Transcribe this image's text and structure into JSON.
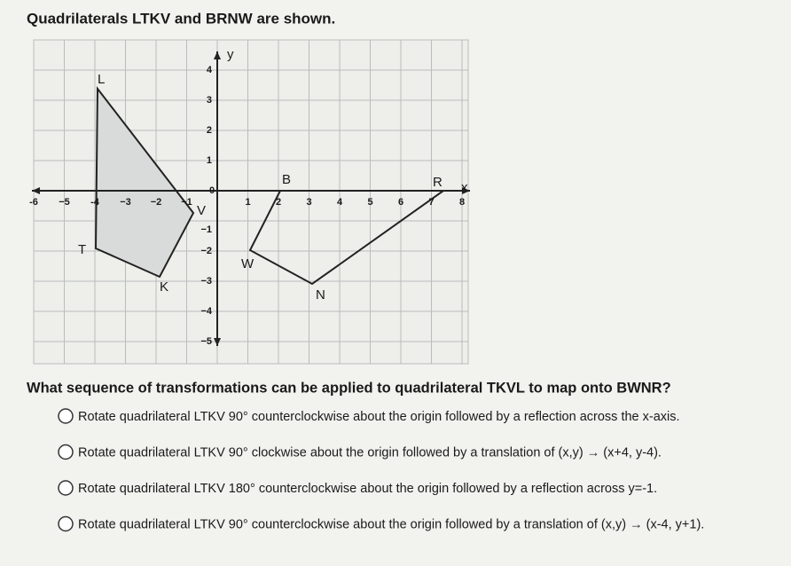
{
  "title": "Quadrilaterals LTKV and BRNW are shown.",
  "graph": {
    "x_axis_label": "x",
    "y_axis_label": "y",
    "x_tick_labels": [
      "-6",
      "−5",
      "-4",
      "−3",
      "−2",
      "−1",
      "0",
      "1",
      "2",
      "3",
      "4",
      "5",
      "6",
      "7",
      "8"
    ],
    "y_tick_labels": [
      "4",
      "3",
      "2",
      "1",
      "−1",
      "−2",
      "−3",
      "−4",
      "−5"
    ],
    "point_labels": {
      "L": "L",
      "T": "T",
      "K": "K",
      "V": "V",
      "B": "B",
      "R": "R",
      "N": "N",
      "W": "W"
    }
  },
  "question": "What sequence of transformations can be applied to quadrilateral TKVL to map onto BWNR?",
  "options": [
    "Rotate quadrilateral LTKV 90° counterclockwise about the origin followed by a reflection across the x-axis.",
    "Rotate quadrilateral LTKV 90° clockwise about the origin followed by a translation of (x,y) → (x+4, y-4).",
    "Rotate quadrilateral LTKV 180° counterclockwise about the origin followed by a reflection across y=-1.",
    "Rotate quadrilateral LTKV 90° counterclockwise about the origin followed by a translation of (x,y) → (x-4, y+1)."
  ]
}
